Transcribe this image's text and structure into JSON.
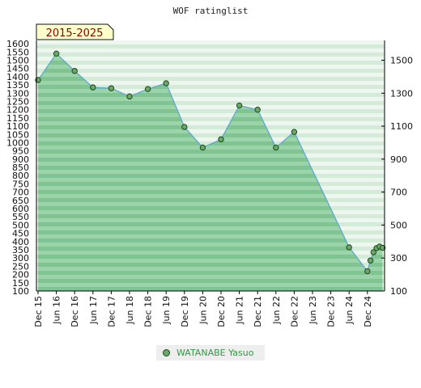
{
  "chart_data": {
    "type": "line",
    "title": "WOF ratinglist",
    "range_badge": "2015-2025",
    "x_tick_labels": [
      "Dec 15",
      "Jun 16",
      "Dec 16",
      "Jun 17",
      "Dec 17",
      "Jun 18",
      "Dec 18",
      "Jun 19",
      "Dec 19",
      "Jun 20",
      "Dec 20",
      "Jun 21",
      "Dec 21",
      "Jun 22",
      "Dec 22",
      "Jun 23",
      "Dec 23",
      "Jun 24",
      "Dec 24"
    ],
    "y_left_ticks": [
      1600,
      1550,
      1500,
      1450,
      1400,
      1350,
      1300,
      1250,
      1200,
      1150,
      1100,
      1050,
      1000,
      950,
      900,
      850,
      800,
      750,
      700,
      650,
      600,
      550,
      500,
      450,
      400,
      350,
      300,
      250,
      200,
      150,
      100
    ],
    "y_right_ticks": [
      1500,
      1300,
      1100,
      900,
      700,
      500,
      300,
      100
    ],
    "ylim": [
      100,
      1620
    ],
    "series": [
      {
        "name": "WATANABE Yasuo",
        "x": [
          "Dec 15",
          "Jun 16",
          "Dec 16",
          "Jun 17",
          "Dec 17",
          "Jun 18",
          "Dec 18",
          "Jun 19",
          "Dec 19",
          "Jun 20",
          "Dec 20",
          "Jun 21",
          "Dec 21",
          "Jun 22",
          "Dec 22",
          "Jun 24",
          "Dec 24",
          "Jan 25",
          "Feb 25",
          "Mar 25",
          "Apr 25",
          "May 25"
        ],
        "values": [
          1380,
          1540,
          1435,
          1335,
          1330,
          1280,
          1325,
          1360,
          1095,
          970,
          1020,
          1225,
          1200,
          970,
          1065,
          365,
          220,
          285,
          335,
          360,
          370,
          362
        ]
      }
    ],
    "colors": {
      "line": "#5fa9cc",
      "marker_fill": "#66aa66",
      "marker_edge": "#224422",
      "area_fill": "#8ccf9c",
      "badge_bg": "#ffffcc"
    },
    "legend_position": "bottom-center"
  }
}
